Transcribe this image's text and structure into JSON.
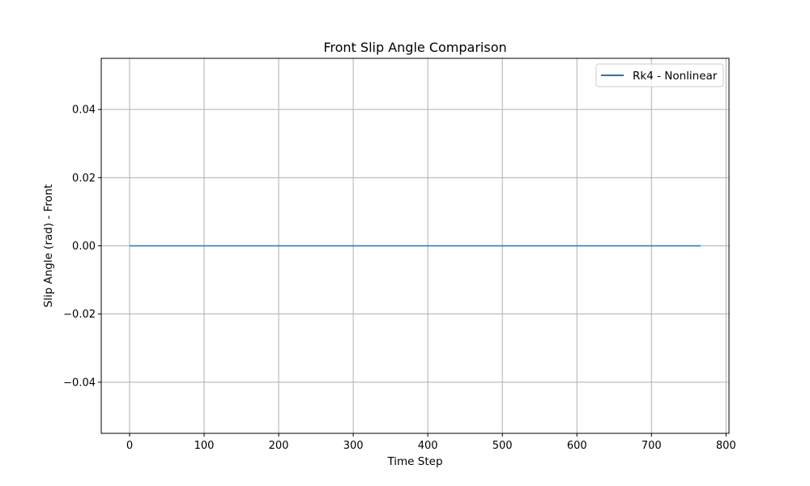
{
  "chart_data": {
    "type": "line",
    "title": "Front Slip Angle Comparison",
    "xlabel": "Time Step",
    "ylabel": "Slip Angle (rad) - Front",
    "xlim": [
      -38,
      804
    ],
    "ylim": [
      -0.055,
      0.055
    ],
    "x_ticks": [
      0,
      100,
      200,
      300,
      400,
      500,
      600,
      700,
      800
    ],
    "x_tick_labels": [
      "0",
      "100",
      "200",
      "300",
      "400",
      "500",
      "600",
      "700",
      "800"
    ],
    "y_ticks": [
      -0.04,
      -0.02,
      0.0,
      0.02,
      0.04
    ],
    "y_tick_labels": [
      "−0.04",
      "−0.02",
      "0.00",
      "0.02",
      "0.04"
    ],
    "grid": true,
    "legend_position": "top-right",
    "series": [
      {
        "name": "Rk4 - Nonlinear",
        "color": "#1f77b4",
        "x": [
          0,
          766
        ],
        "y": [
          0.0,
          0.0
        ]
      }
    ]
  }
}
